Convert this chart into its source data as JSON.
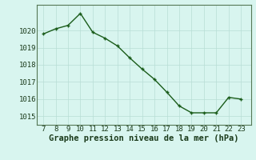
{
  "x": [
    7,
    8,
    9,
    10,
    11,
    12,
    13,
    14,
    15,
    16,
    17,
    18,
    19,
    20,
    21,
    22,
    23
  ],
  "y": [
    1019.8,
    1020.1,
    1020.3,
    1021.0,
    1019.9,
    1019.55,
    1019.1,
    1018.4,
    1017.75,
    1017.15,
    1016.4,
    1015.6,
    1015.2,
    1015.2,
    1015.2,
    1016.1,
    1016.0
  ],
  "line_color": "#1a5c1a",
  "marker_color": "#1a5c1a",
  "bg_color": "#d8f5ef",
  "grid_color": "#b8ddd5",
  "xlabel": "Graphe pression niveau de la mer (hPa)",
  "xlabel_fontsize": 7.5,
  "ylabel_ticks": [
    1015,
    1016,
    1017,
    1018,
    1019,
    1020
  ],
  "xlim": [
    6.5,
    23.8
  ],
  "ylim": [
    1014.5,
    1021.5
  ],
  "xticks": [
    7,
    8,
    9,
    10,
    11,
    12,
    13,
    14,
    15,
    16,
    17,
    18,
    19,
    20,
    21,
    22,
    23
  ],
  "tick_fontsize": 6.5,
  "line_width": 1.0,
  "marker_size": 2.8
}
